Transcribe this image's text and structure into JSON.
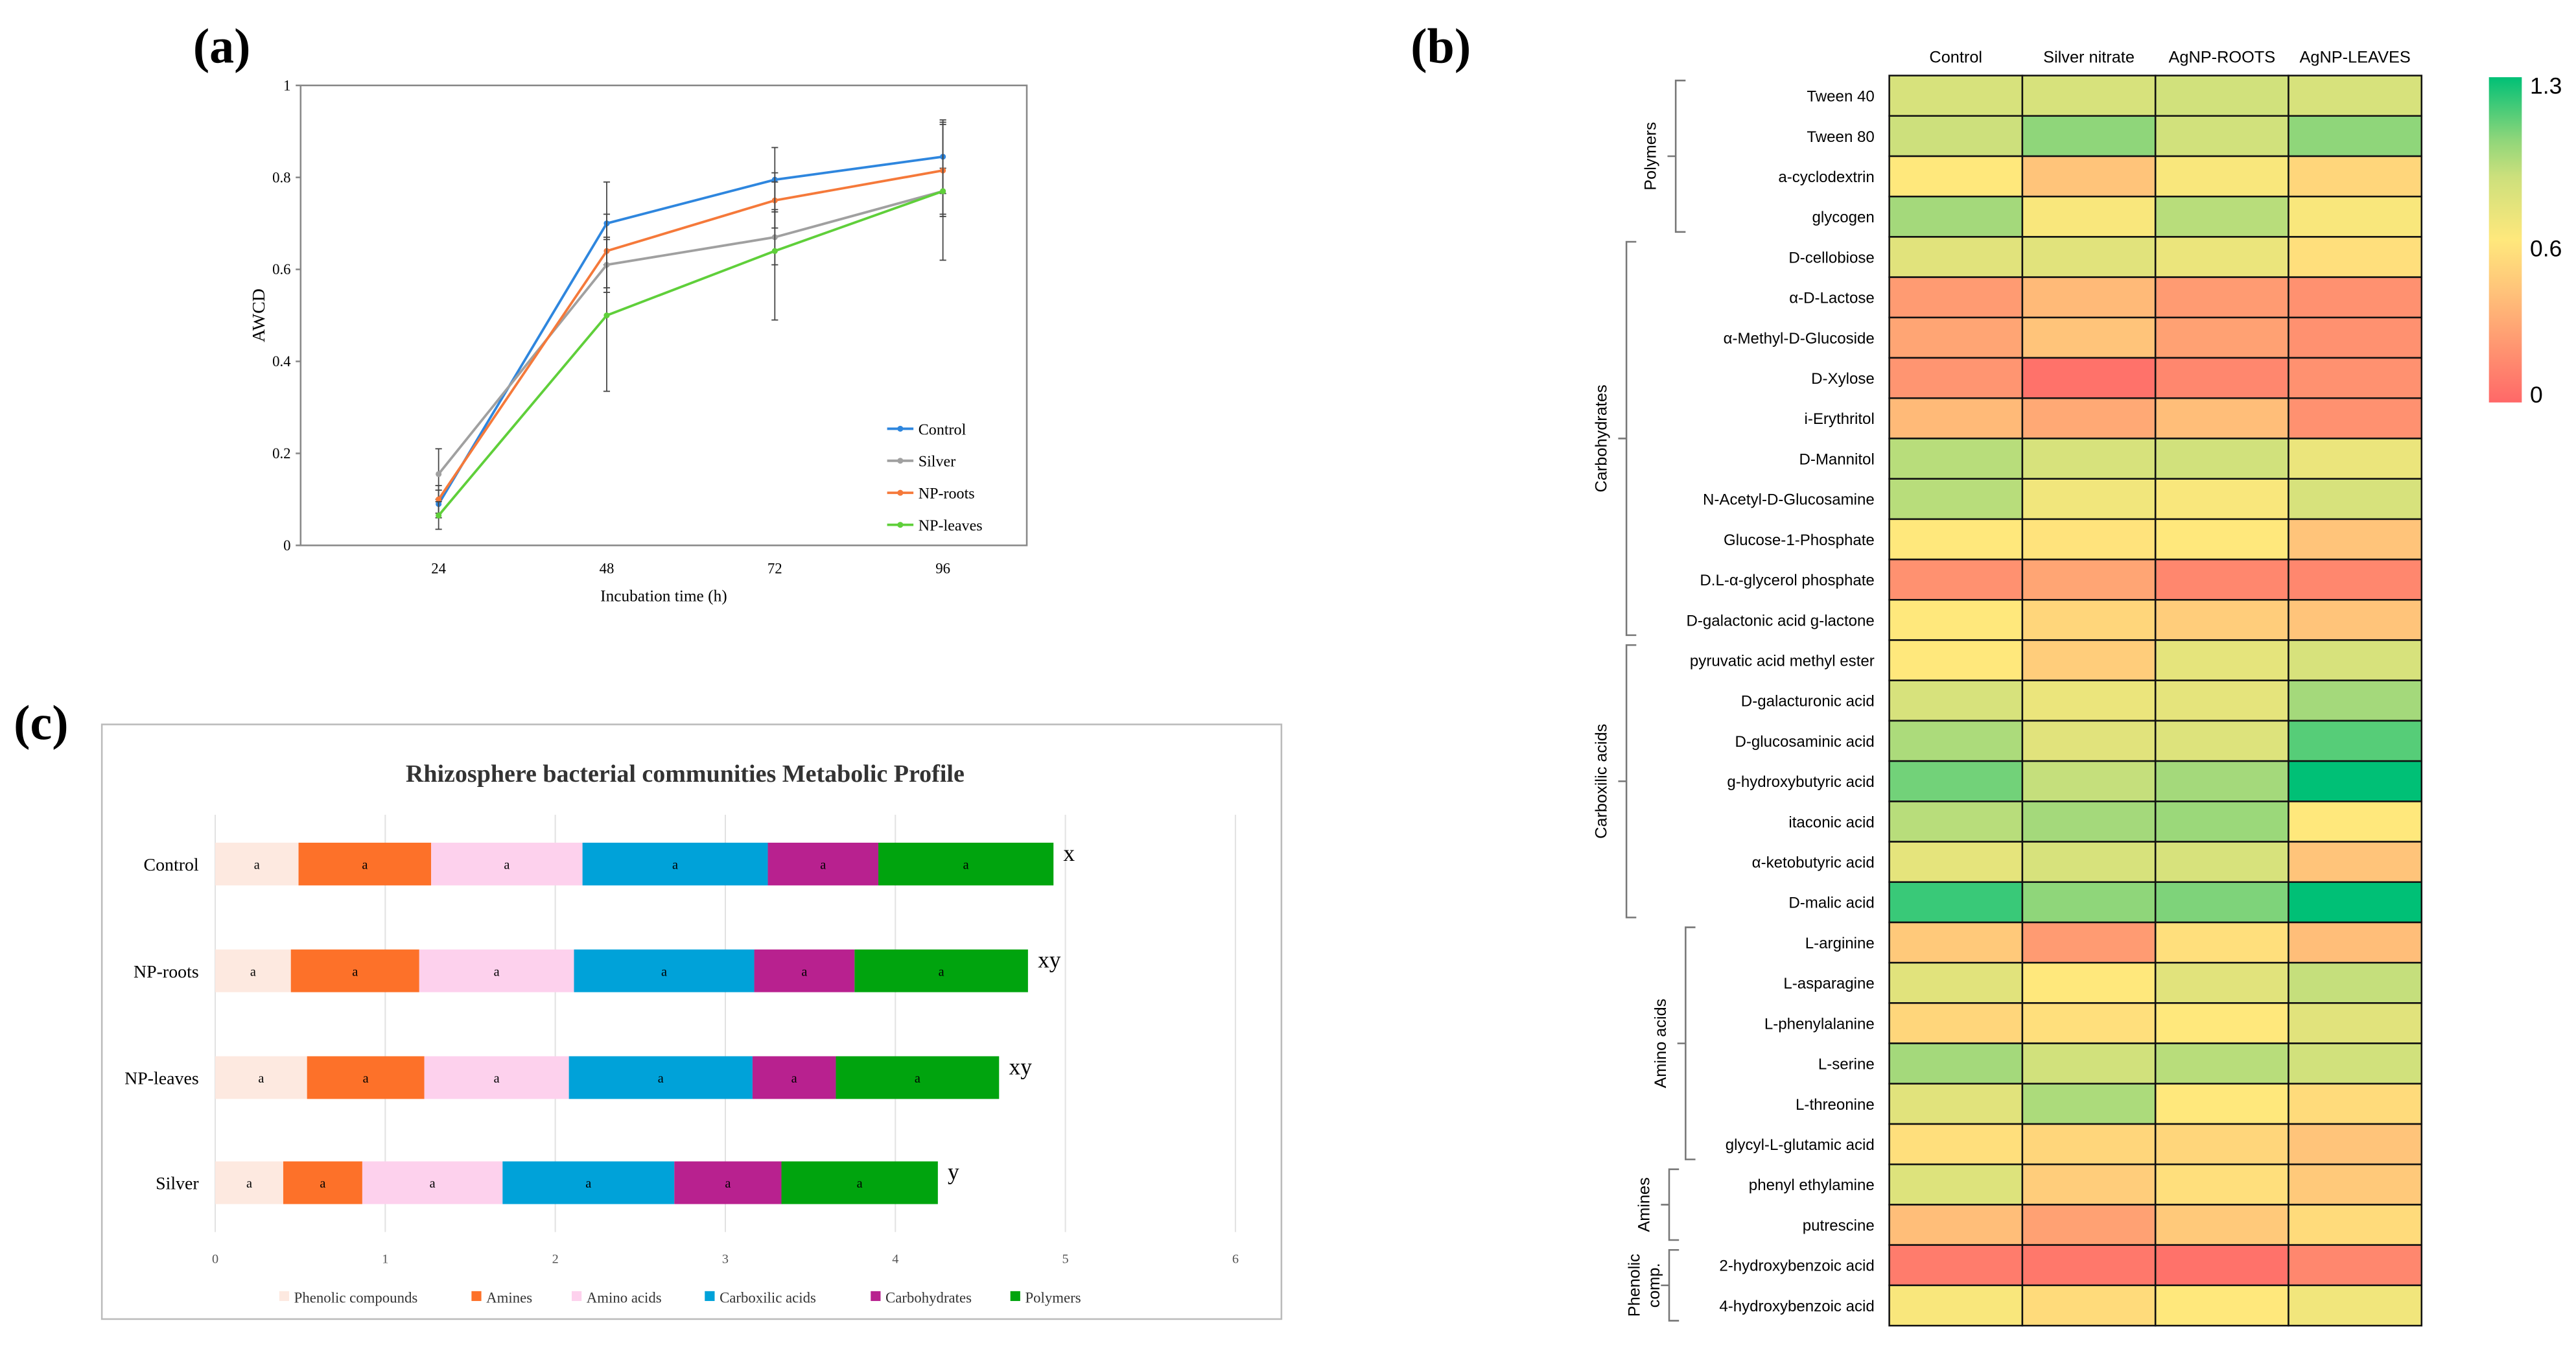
{
  "panel_labels": {
    "a": "(a)",
    "b": "(b)",
    "c": "(c)"
  },
  "chart_data": [
    {
      "id": "a",
      "type": "line",
      "title": "",
      "xlabel": "Incubation time (h)",
      "ylabel": "AWCD",
      "categories": [
        "24",
        "48",
        "72",
        "96"
      ],
      "ylim": [
        0,
        1
      ],
      "yticks": [
        "0",
        "0.2",
        "0.4",
        "0.6",
        "0.8",
        "1"
      ],
      "grid": false,
      "legend": "bottom-right",
      "series": [
        {
          "name": "Control",
          "color": "#2e86de",
          "values": [
            0.09,
            0.7,
            0.795,
            0.845
          ],
          "errors": [
            0.03,
            0.09,
            0.07,
            0.08
          ]
        },
        {
          "name": "Silver",
          "color": "#a0a0a0",
          "values": [
            0.155,
            0.61,
            0.67,
            0.77
          ],
          "errors": [
            0.055,
            0.06,
            0.06,
            0.05
          ]
        },
        {
          "name": "NP-roots",
          "color": "#f5793a",
          "values": [
            0.1,
            0.64,
            0.75,
            0.815
          ],
          "errors": [
            0.03,
            0.08,
            0.06,
            0.1
          ]
        },
        {
          "name": "NP-leaves",
          "color": "#5fcf3a",
          "values": [
            0.065,
            0.5,
            0.64,
            0.77
          ],
          "errors": [
            0.03,
            0.165,
            0.15,
            0.15
          ]
        }
      ]
    },
    {
      "id": "b",
      "type": "heatmap",
      "columns": [
        "Control",
        "Silver nitrate",
        "AgNP-ROOTS",
        "AgNP-LEAVES"
      ],
      "colorbar": {
        "min": 0,
        "max": 1.3,
        "ticks": [
          "1.3",
          "0.6",
          "0"
        ],
        "colors": [
          "#ff6868",
          "#ffc47a",
          "#ffe87c",
          "#cde07c",
          "#8fd67a",
          "#00c076"
        ]
      },
      "groups": [
        {
          "name": "Polymers",
          "start": 0,
          "end": 3
        },
        {
          "name": "Carbohydrates",
          "start": 4,
          "end": 13
        },
        {
          "name": "Carboxilic acids",
          "start": 14,
          "end": 20
        },
        {
          "name": "Amino acids",
          "start": 21,
          "end": 26
        },
        {
          "name": "Amines",
          "start": 27,
          "end": 28
        },
        {
          "name": "Phenolic comp.",
          "start": 29,
          "end": 30
        }
      ],
      "rows": [
        {
          "label": "Tween 40",
          "values": [
            0.85,
            0.85,
            0.88,
            0.85
          ]
        },
        {
          "label": "Tween 80",
          "values": [
            0.9,
            1.05,
            0.88,
            1.05
          ]
        },
        {
          "label": "a-cyclodextrin",
          "values": [
            0.65,
            0.45,
            0.68,
            0.55
          ]
        },
        {
          "label": "glycogen",
          "values": [
            1.0,
            0.68,
            0.95,
            0.68
          ]
        },
        {
          "label": "D-cellobiose",
          "values": [
            0.8,
            0.8,
            0.75,
            0.6
          ]
        },
        {
          "label": "α-D-Lactose",
          "values": [
            0.25,
            0.4,
            0.25,
            0.2
          ]
        },
        {
          "label": "α-Methyl-D-Glucoside",
          "values": [
            0.3,
            0.45,
            0.28,
            0.2
          ]
        },
        {
          "label": "D-Xylose",
          "values": [
            0.22,
            0.05,
            0.15,
            0.2
          ]
        },
        {
          "label": "i-Erythritol",
          "values": [
            0.4,
            0.32,
            0.42,
            0.2
          ]
        },
        {
          "label": "D-Mannitol",
          "values": [
            0.95,
            0.85,
            0.88,
            0.75
          ]
        },
        {
          "label": "N-Acetyl-D-Glucosamine",
          "values": [
            0.95,
            0.72,
            0.68,
            0.85
          ]
        },
        {
          "label": "Glucose-1-Phosphate",
          "values": [
            0.65,
            0.62,
            0.65,
            0.45
          ]
        },
        {
          "label": "D.L-α-glycerol phosphate",
          "values": [
            0.2,
            0.3,
            0.15,
            0.15
          ]
        },
        {
          "label": "D-galactonic acid g-lactone",
          "values": [
            0.65,
            0.55,
            0.5,
            0.45
          ]
        },
        {
          "label": "pyruvatic acid methyl ester",
          "values": [
            0.65,
            0.5,
            0.78,
            0.85
          ]
        },
        {
          "label": "D-galacturonic acid",
          "values": [
            0.85,
            0.75,
            0.78,
            1.0
          ]
        },
        {
          "label": "D-glucosaminic acid",
          "values": [
            0.98,
            0.8,
            0.82,
            1.15
          ]
        },
        {
          "label": "g-hydroxybutyric acid",
          "values": [
            1.1,
            0.92,
            1.0,
            1.3
          ]
        },
        {
          "label": "itaconic acid",
          "values": [
            0.95,
            1.0,
            1.02,
            0.65
          ]
        },
        {
          "label": "α-ketobutyric acid",
          "values": [
            0.78,
            0.85,
            0.85,
            0.45
          ]
        },
        {
          "label": "D-malic acid",
          "values": [
            1.2,
            1.05,
            1.08,
            1.3
          ]
        },
        {
          "label": "L-arginine",
          "values": [
            0.48,
            0.25,
            0.6,
            0.42
          ]
        },
        {
          "label": "L-asparagine",
          "values": [
            0.8,
            0.65,
            0.8,
            0.92
          ]
        },
        {
          "label": "L-phenylalanine",
          "values": [
            0.55,
            0.6,
            0.65,
            0.8
          ]
        },
        {
          "label": "L-serine",
          "values": [
            1.0,
            0.88,
            0.95,
            0.88
          ]
        },
        {
          "label": "L-threonine",
          "values": [
            0.8,
            0.98,
            0.65,
            0.58
          ]
        },
        {
          "label": "glycyl-L-glutamic acid",
          "values": [
            0.6,
            0.55,
            0.55,
            0.45
          ]
        },
        {
          "label": "phenyl ethylamine",
          "values": [
            0.82,
            0.5,
            0.6,
            0.48
          ]
        },
        {
          "label": "putrescine",
          "values": [
            0.42,
            0.28,
            0.48,
            0.58
          ]
        },
        {
          "label": "2-hydroxybenzoic acid",
          "values": [
            0.1,
            0.08,
            0.05,
            0.15
          ]
        },
        {
          "label": "4-hydroxybenzoic acid",
          "values": [
            0.68,
            0.58,
            0.65,
            0.72
          ]
        }
      ]
    },
    {
      "id": "c",
      "type": "bar",
      "orientation": "horizontal-stacked",
      "title": "Rhizosphere bacterial communities Metabolic Profile",
      "xlim": [
        0,
        6
      ],
      "xticks": [
        "0",
        "1",
        "2",
        "3",
        "4",
        "5",
        "6"
      ],
      "grid": true,
      "legend": "bottom",
      "categories": [
        "Control",
        "NP-roots",
        "NP-leaves",
        "Silver"
      ],
      "significance": [
        "x",
        "xy",
        "xy",
        "y"
      ],
      "segment_label": "a",
      "series": [
        {
          "name": "Phenolic compounds",
          "color": "#fde9e0",
          "values": [
            0.49,
            0.445,
            0.54,
            0.4
          ]
        },
        {
          "name": "Amines",
          "color": "#fd7129",
          "values": [
            0.78,
            0.755,
            0.69,
            0.465
          ]
        },
        {
          "name": "Amino acids",
          "color": "#fdd1ed",
          "values": [
            0.89,
            0.91,
            0.85,
            0.825
          ]
        },
        {
          "name": "Carboxilic acids",
          "color": "#00a2d9",
          "values": [
            1.09,
            1.06,
            1.08,
            1.01
          ]
        },
        {
          "name": "Carbohydrates",
          "color": "#b8218f",
          "values": [
            0.65,
            0.59,
            0.49,
            0.63
          ]
        },
        {
          "name": "Polymers",
          "color": "#00a40e",
          "values": [
            1.03,
            1.02,
            0.96,
            0.92
          ]
        }
      ]
    }
  ]
}
